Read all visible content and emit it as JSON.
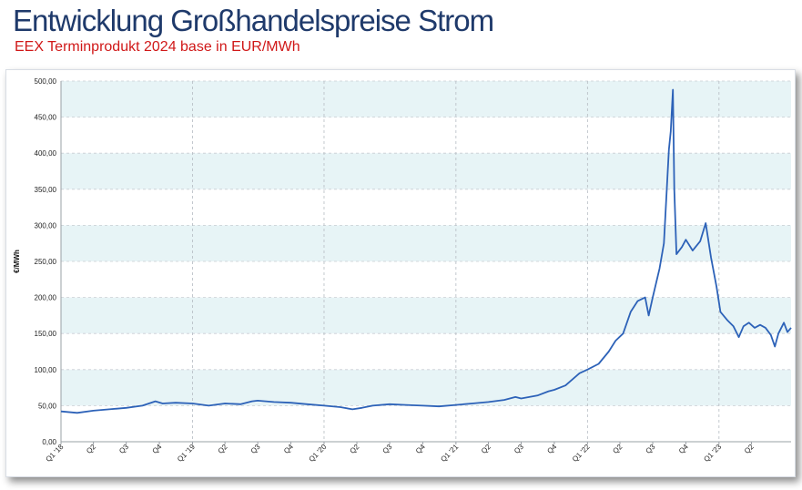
{
  "header": {
    "title": "Entwicklung Großhandelspreise Strom",
    "subtitle": "EEX Terminprodukt 2024 base in EUR/MWh"
  },
  "colors": {
    "title": "#1f3a6b",
    "subtitle": "#d01818",
    "line": "#2d62b8",
    "band": "#e7f4f6"
  },
  "chart_data": {
    "type": "line",
    "title": "",
    "xlabel": "",
    "ylabel": "€/MWh",
    "ylim": [
      0,
      500
    ],
    "grid": true,
    "y_ticks": [
      0,
      50,
      100,
      150,
      200,
      250,
      300,
      350,
      400,
      450,
      500
    ],
    "y_tick_labels": [
      "0,00",
      "50,00",
      "100,00",
      "150,00",
      "200,00",
      "250,00",
      "300,00",
      "350,00",
      "400,00",
      "450,00",
      "500,00"
    ],
    "x_range": [
      "2018-01-01",
      "2023-07-20"
    ],
    "x_ticks": [
      {
        "label": "Q1 '18",
        "date": "2018-01-01"
      },
      {
        "label": "Q2",
        "date": "2018-04-01"
      },
      {
        "label": "Q3",
        "date": "2018-07-01"
      },
      {
        "label": "Q4",
        "date": "2018-10-01"
      },
      {
        "label": "Q1 '19",
        "date": "2019-01-01"
      },
      {
        "label": "Q2",
        "date": "2019-04-01"
      },
      {
        "label": "Q3",
        "date": "2019-07-01"
      },
      {
        "label": "Q4",
        "date": "2019-10-01"
      },
      {
        "label": "Q1 '20",
        "date": "2020-01-01"
      },
      {
        "label": "Q2",
        "date": "2020-04-01"
      },
      {
        "label": "Q3",
        "date": "2020-07-01"
      },
      {
        "label": "Q4",
        "date": "2020-10-01"
      },
      {
        "label": "Q1 '21",
        "date": "2021-01-01"
      },
      {
        "label": "Q2",
        "date": "2021-04-01"
      },
      {
        "label": "Q3",
        "date": "2021-07-01"
      },
      {
        "label": "Q4",
        "date": "2021-10-01"
      },
      {
        "label": "Q1 '22",
        "date": "2022-01-01"
      },
      {
        "label": "Q2",
        "date": "2022-04-01"
      },
      {
        "label": "Q3",
        "date": "2022-07-01"
      },
      {
        "label": "Q4",
        "date": "2022-10-01"
      },
      {
        "label": "Q1 '23",
        "date": "2023-01-01"
      },
      {
        "label": "Q2",
        "date": "2023-04-01"
      }
    ],
    "year_lines": [
      "2019-01-01",
      "2020-01-01",
      "2021-01-01",
      "2022-01-01",
      "2023-01-01"
    ],
    "series": [
      {
        "points": [
          [
            "2018-01-01",
            42
          ],
          [
            "2018-02-15",
            40
          ],
          [
            "2018-04-01",
            43
          ],
          [
            "2018-05-15",
            45
          ],
          [
            "2018-07-01",
            47
          ],
          [
            "2018-08-15",
            50
          ],
          [
            "2018-09-20",
            56
          ],
          [
            "2018-10-10",
            53
          ],
          [
            "2018-11-15",
            54
          ],
          [
            "2019-01-01",
            53
          ],
          [
            "2019-02-15",
            50
          ],
          [
            "2019-04-01",
            53
          ],
          [
            "2019-05-15",
            52
          ],
          [
            "2019-06-15",
            56
          ],
          [
            "2019-07-01",
            57
          ],
          [
            "2019-08-15",
            55
          ],
          [
            "2019-10-01",
            54
          ],
          [
            "2019-11-15",
            52
          ],
          [
            "2020-01-01",
            50
          ],
          [
            "2020-02-15",
            48
          ],
          [
            "2020-03-20",
            45
          ],
          [
            "2020-04-15",
            47
          ],
          [
            "2020-05-15",
            50
          ],
          [
            "2020-07-01",
            52
          ],
          [
            "2020-08-15",
            51
          ],
          [
            "2020-10-01",
            50
          ],
          [
            "2020-11-15",
            49
          ],
          [
            "2021-01-01",
            51
          ],
          [
            "2021-02-15",
            53
          ],
          [
            "2021-04-01",
            55
          ],
          [
            "2021-05-15",
            58
          ],
          [
            "2021-06-15",
            62
          ],
          [
            "2021-07-01",
            60
          ],
          [
            "2021-08-15",
            64
          ],
          [
            "2021-09-15",
            70
          ],
          [
            "2021-10-01",
            72
          ],
          [
            "2021-11-01",
            78
          ],
          [
            "2021-12-10",
            95
          ],
          [
            "2022-01-01",
            100
          ],
          [
            "2022-02-01",
            108
          ],
          [
            "2022-03-01",
            125
          ],
          [
            "2022-03-20",
            140
          ],
          [
            "2022-04-10",
            150
          ],
          [
            "2022-05-01",
            180
          ],
          [
            "2022-05-20",
            195
          ],
          [
            "2022-06-10",
            200
          ],
          [
            "2022-06-20",
            175
          ],
          [
            "2022-07-01",
            200
          ],
          [
            "2022-07-20",
            240
          ],
          [
            "2022-08-01",
            275
          ],
          [
            "2022-08-15",
            405
          ],
          [
            "2022-08-20",
            430
          ],
          [
            "2022-08-26",
            488
          ],
          [
            "2022-08-30",
            350
          ],
          [
            "2022-09-05",
            260
          ],
          [
            "2022-09-20",
            270
          ],
          [
            "2022-10-01",
            280
          ],
          [
            "2022-10-20",
            265
          ],
          [
            "2022-11-10",
            278
          ],
          [
            "2022-11-25",
            303
          ],
          [
            "2022-12-10",
            255
          ],
          [
            "2022-12-25",
            215
          ],
          [
            "2023-01-05",
            180
          ],
          [
            "2023-01-25",
            168
          ],
          [
            "2023-02-10",
            160
          ],
          [
            "2023-02-25",
            145
          ],
          [
            "2023-03-10",
            160
          ],
          [
            "2023-03-25",
            165
          ],
          [
            "2023-04-10",
            158
          ],
          [
            "2023-04-25",
            162
          ],
          [
            "2023-05-10",
            158
          ],
          [
            "2023-05-25",
            148
          ],
          [
            "2023-06-05",
            132
          ],
          [
            "2023-06-15",
            150
          ],
          [
            "2023-06-30",
            165
          ],
          [
            "2023-07-10",
            152
          ],
          [
            "2023-07-20",
            158
          ]
        ]
      }
    ]
  }
}
